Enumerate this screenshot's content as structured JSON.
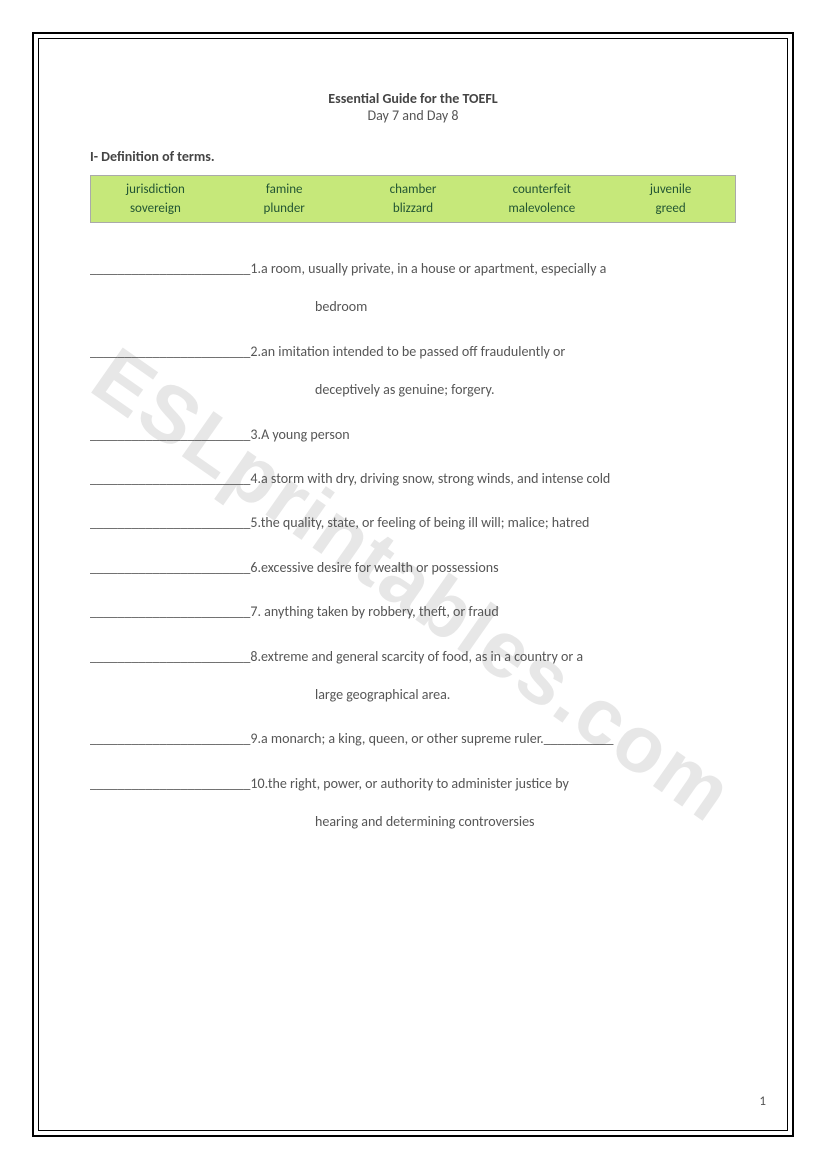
{
  "title": {
    "main": "Essential Guide for the TOEFL",
    "sub": "Day 7 and Day 8"
  },
  "section_header": "I- Definition of terms.",
  "word_bank": {
    "row1": [
      "jurisdiction",
      "famine",
      "chamber",
      "counterfeit",
      "juvenile"
    ],
    "row2": [
      "sovereign",
      "plunder",
      "blizzard",
      "malevolence",
      "greed"
    ],
    "bg_color": "#c6e87a",
    "text_color": "#225533"
  },
  "blank": "_______________________",
  "trailing_blank": "__________",
  "definitions": [
    {
      "n": "1.",
      "text": "a room, usually private, in a house or apartment, especially a",
      "cont": "bedroom"
    },
    {
      "n": "2.",
      "text": "an imitation intended to be passed off fraudulently or",
      "cont": "deceptively as genuine; forgery."
    },
    {
      "n": "3.",
      "text": "A young person"
    },
    {
      "n": "4.",
      "text": "a storm with dry, driving snow, strong winds, and intense cold"
    },
    {
      "n": "5.",
      "text": "the quality, state, or feeling of being ill will; malice; hatred"
    },
    {
      "n": "6.",
      "text": "excessive desire for wealth or possessions"
    },
    {
      "n": "7.",
      "text": " anything taken by robbery, theft, or fraud"
    },
    {
      "n": "8.",
      "text": "extreme and general scarcity of food, as in a country or a",
      "cont": "large geographical area."
    },
    {
      "n": "9.",
      "text": "a monarch; a king, queen, or other supreme ruler.",
      "trailing": true
    },
    {
      "n": "10.",
      "text": "the right, power, or authority to administer justice by",
      "cont": "hearing and determining controversies"
    }
  ],
  "page_number": "1",
  "watermark": "ESLprintables.com"
}
